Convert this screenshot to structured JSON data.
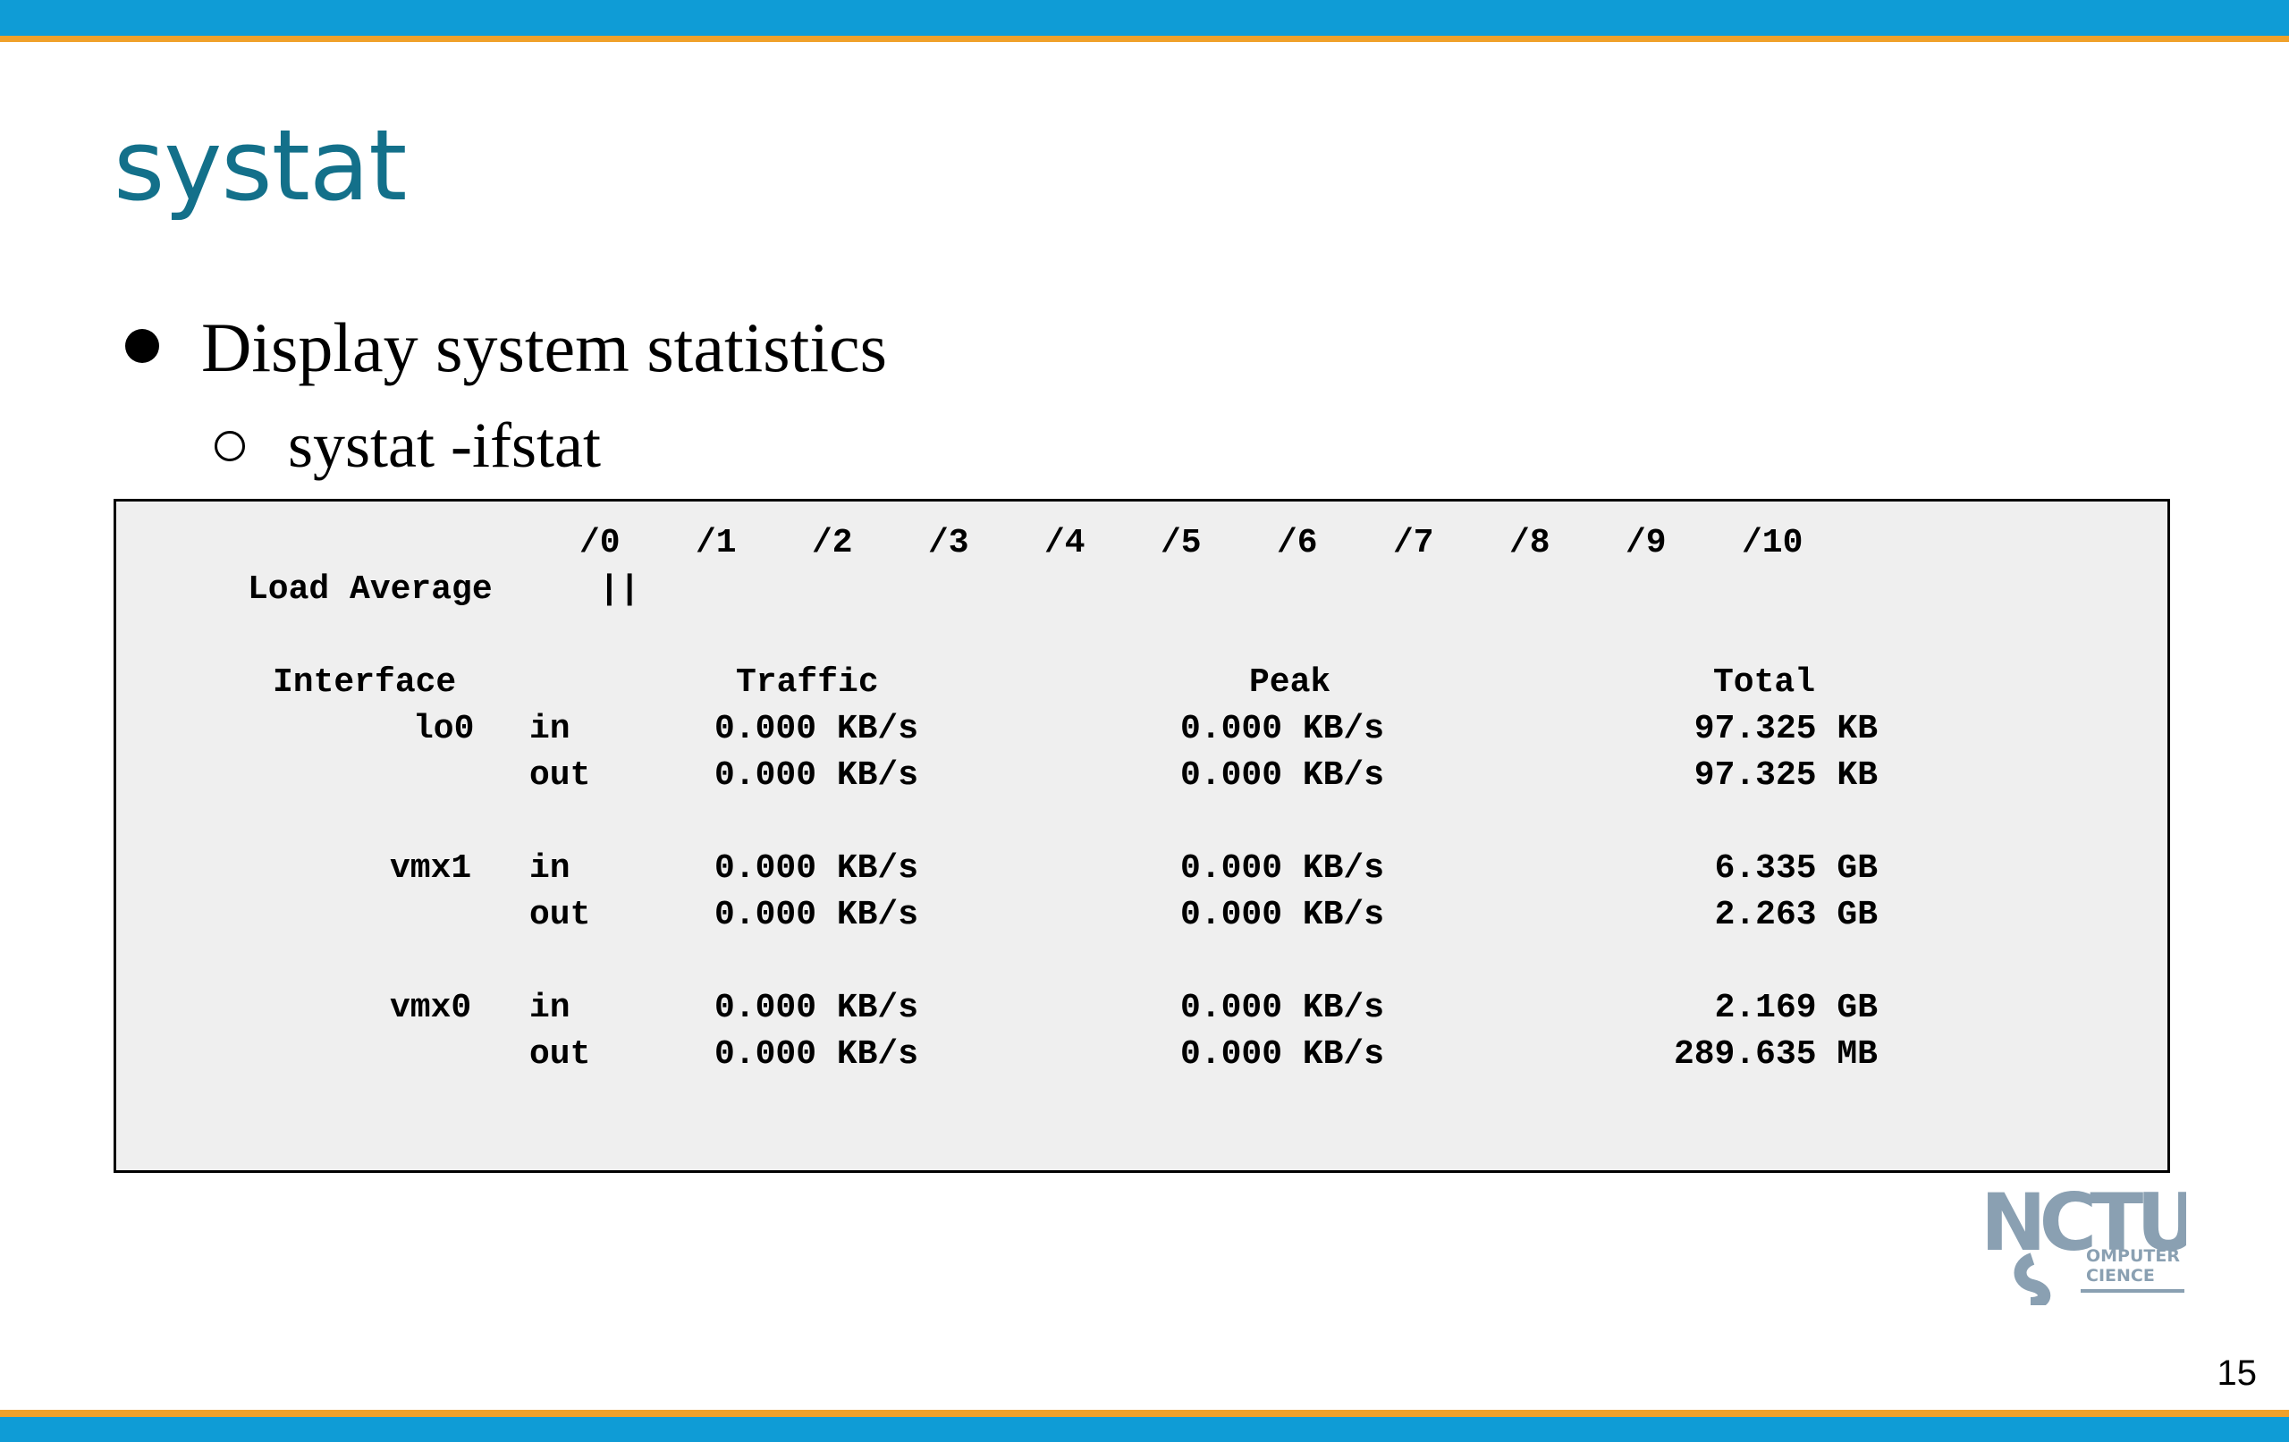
{
  "slide": {
    "title": "systat",
    "bullet_1": "Display system statistics",
    "bullet_2": "systat -ifstat",
    "page_number": "15"
  },
  "terminal": {
    "scale_ticks": [
      "/0",
      "/1",
      "/2",
      "/3",
      "/4",
      "/5",
      "/6",
      "/7",
      "/8",
      "/9",
      "/10"
    ],
    "load_average_label": "Load Average",
    "load_average_bar": "||",
    "headers": {
      "interface": "Interface",
      "traffic": "Traffic",
      "peak": "Peak",
      "total": "Total"
    },
    "rows": [
      {
        "iface": "lo0",
        "dir": "in",
        "traffic": "0.000 KB/s",
        "peak": "0.000 KB/s",
        "total": "97.325 KB"
      },
      {
        "iface": "",
        "dir": "out",
        "traffic": "0.000 KB/s",
        "peak": "0.000 KB/s",
        "total": "97.325 KB"
      },
      {
        "iface": "vmx1",
        "dir": "in",
        "traffic": "0.000 KB/s",
        "peak": "0.000 KB/s",
        "total": "6.335 GB"
      },
      {
        "iface": "",
        "dir": "out",
        "traffic": "0.000 KB/s",
        "peak": "0.000 KB/s",
        "total": "2.263 GB"
      },
      {
        "iface": "vmx0",
        "dir": "in",
        "traffic": "0.000 KB/s",
        "peak": "0.000 KB/s",
        "total": "2.169 GB"
      },
      {
        "iface": "",
        "dir": "out",
        "traffic": "0.000 KB/s",
        "peak": "0.000 KB/s",
        "total": "289.635 MB"
      }
    ]
  },
  "logo": {
    "icon": "nctu-cs-logo",
    "text_main": "NCTU",
    "text_sub_1": "OMPUTER",
    "text_sub_2": "CIENCE",
    "color": "#8aa0b2"
  },
  "colors": {
    "bar_blue": "#0f9cd6",
    "stripe_orange": "#f0a12a",
    "title_teal": "#13708a",
    "terminal_bg": "#efefef"
  }
}
